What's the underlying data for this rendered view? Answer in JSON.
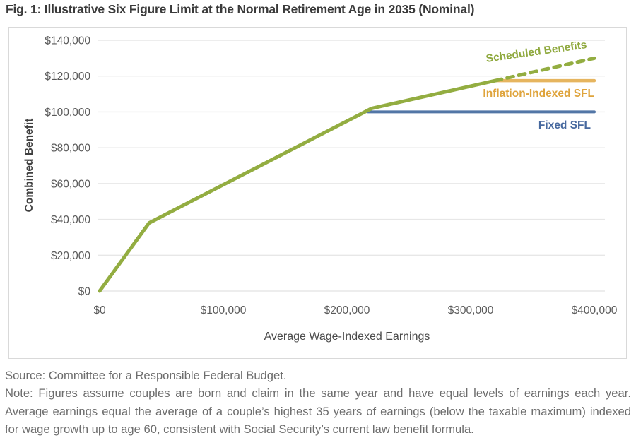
{
  "header": {
    "title": "Fig. 1: Illustrative Six Figure Limit at the Normal Retirement Age in 2035 (Nominal)"
  },
  "chart_data": {
    "type": "line",
    "title": "Fig. 1: Illustrative Six Figure Limit at the Normal Retirement Age in 2035 (Nominal)",
    "xlabel": "Average Wage-Indexed Earnings",
    "ylabel": "Combined Benefit",
    "xlim": [
      0,
      400000
    ],
    "ylim": [
      0,
      140000
    ],
    "grid": "horizontal-only",
    "gridline_color": "#e7e7e7",
    "background_color": "#ffffff",
    "legend_position": "inline-labels-at-line-ends",
    "x_ticks": [
      {
        "value": 0,
        "label": "$0"
      },
      {
        "value": 100000,
        "label": "$100,000"
      },
      {
        "value": 200000,
        "label": "$200,000"
      },
      {
        "value": 300000,
        "label": "$300,000"
      },
      {
        "value": 400000,
        "label": "$400,000"
      }
    ],
    "y_ticks": [
      {
        "value": 0,
        "label": "$0"
      },
      {
        "value": 20000,
        "label": "$20,000"
      },
      {
        "value": 40000,
        "label": "$40,000"
      },
      {
        "value": 60000,
        "label": "$60,000"
      },
      {
        "value": 80000,
        "label": "$80,000"
      },
      {
        "value": 100000,
        "label": "$100,000"
      },
      {
        "value": 120000,
        "label": "$120,000"
      },
      {
        "value": 140000,
        "label": "$140,000"
      }
    ],
    "series": [
      {
        "name": "Scheduled Benefits",
        "color": "#93ad41",
        "label_color": "#8fa93e",
        "line_style": "solid, dashed above the Six Figure Limit",
        "dash_from_x": 320000,
        "points": [
          [
            0,
            0
          ],
          [
            40000,
            38000
          ],
          [
            220000,
            102000
          ],
          [
            320000,
            117500
          ],
          [
            400000,
            130000
          ]
        ]
      },
      {
        "name": "Inflation-Indexed SFL",
        "color": "#e6b55f",
        "label_color": "#dfa43c",
        "line_style": "solid",
        "points": [
          [
            320000,
            117500
          ],
          [
            400000,
            117500
          ]
        ]
      },
      {
        "name": "Fixed SFL",
        "color": "#5276a6",
        "label_color": "#47699f",
        "line_style": "solid",
        "points": [
          [
            217000,
            100000
          ],
          [
            400000,
            100000
          ]
        ]
      }
    ]
  },
  "footer": {
    "source": "Source: Committee for a Responsible Federal Budget.",
    "note_lines": [
      "Note: Figures assume couples are born and claim in the same year and have equal levels of earnings each year.",
      "Average earnings equal the average of a couple’s highest 35 years of earnings (below the taxable maximum) indexed",
      "for wage growth up to age 60, consistent with Social Security’s current law benefit formula."
    ]
  }
}
